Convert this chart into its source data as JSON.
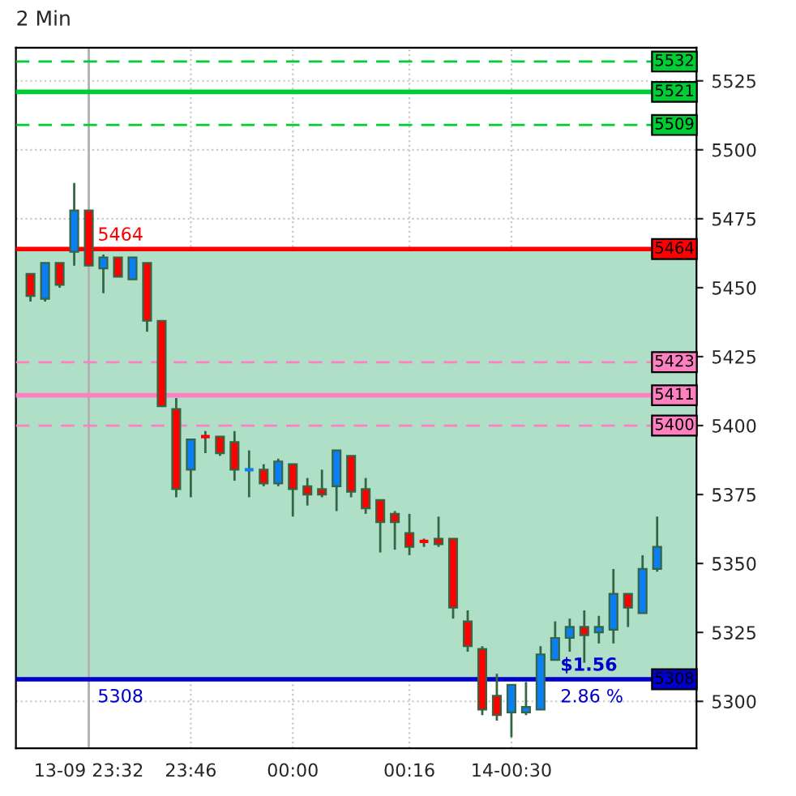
{
  "chart_data": {
    "type": "candlestick",
    "title": "2 Min",
    "categories": [
      null,
      null,
      null,
      null,
      "13-09 23:32",
      null,
      null,
      null,
      null,
      null,
      null,
      "23:46",
      null,
      null,
      null,
      null,
      null,
      null,
      "00:00",
      null,
      null,
      null,
      null,
      null,
      null,
      null,
      "00:16",
      null,
      null,
      null,
      null,
      null,
      null,
      "14-00:30",
      null,
      null,
      null,
      null,
      null,
      null,
      null,
      null,
      null,
      null
    ],
    "ohlc": [
      [
        5455,
        5455,
        5445,
        5447
      ],
      [
        5446,
        5459,
        5445,
        5459
      ],
      [
        5459,
        5459,
        5450,
        5451
      ],
      [
        5463,
        5488,
        5458,
        5478
      ],
      [
        5478,
        5478,
        5458,
        5458
      ],
      [
        5457,
        5462,
        5448,
        5461
      ],
      [
        5461,
        5461,
        5454,
        5454
      ],
      [
        5453,
        5461,
        5453,
        5461
      ],
      [
        5459,
        5459,
        5434,
        5438
      ],
      [
        5438,
        5438,
        5407,
        5407
      ],
      [
        5406,
        5410,
        5374,
        5377
      ],
      [
        5384,
        5395,
        5374,
        5395
      ],
      [
        5396,
        5398,
        5390,
        5396
      ],
      [
        5396,
        5396,
        5389,
        5390
      ],
      [
        5394,
        5398,
        5380,
        5384
      ],
      [
        5384,
        5391,
        5374,
        5384
      ],
      [
        5384,
        5386,
        5378,
        5379
      ],
      [
        5379,
        5388,
        5378,
        5387
      ],
      [
        5386,
        5386,
        5367,
        5377
      ],
      [
        5378,
        5381,
        5371,
        5375
      ],
      [
        5377,
        5384,
        5374,
        5375
      ],
      [
        5378,
        5391,
        5369,
        5391
      ],
      [
        5389,
        5389,
        5374,
        5376
      ],
      [
        5377,
        5381,
        5368,
        5370
      ],
      [
        5373,
        5373,
        5354,
        5365
      ],
      [
        5368,
        5369,
        5355,
        5365
      ],
      [
        5361,
        5368,
        5353,
        5356
      ],
      [
        5358,
        5359,
        5356,
        5358
      ],
      [
        5359,
        5367,
        5356,
        5357
      ],
      [
        5359,
        5359,
        5330,
        5334
      ],
      [
        5329,
        5333,
        5318,
        5320
      ],
      [
        5319,
        5320,
        5295,
        5297
      ],
      [
        5302,
        5310,
        5293,
        5295
      ],
      [
        5296,
        5306,
        5287,
        5306
      ],
      [
        5296,
        5307,
        5295,
        5298
      ],
      [
        5297,
        5320,
        5297,
        5317
      ],
      [
        5315,
        5329,
        5315,
        5323
      ],
      [
        5323,
        5330,
        5318,
        5327
      ],
      [
        5327,
        5333,
        5314,
        5324
      ],
      [
        5325,
        5331,
        5321,
        5327
      ],
      [
        5326,
        5348,
        5321,
        5339
      ],
      [
        5339,
        5339,
        5327,
        5334
      ],
      [
        5332,
        5353,
        5332,
        5348
      ],
      [
        5348,
        5367,
        5347,
        5356
      ]
    ],
    "colors": [
      "#ff0000",
      "#0a7ff5",
      "#ff0000",
      "#0a7ff5",
      "#ff0000",
      "#0a7ff5",
      "#ff0000",
      "#0a7ff5",
      "#ff0000",
      "#ff0000",
      "#ff0000",
      "#0a7ff5",
      "#ff0000",
      "#ff0000",
      "#ff0000",
      "#0a7ff5",
      "#ff0000",
      "#0a7ff5",
      "#ff0000",
      "#ff0000",
      "#ff0000",
      "#0a7ff5",
      "#ff0000",
      "#ff0000",
      "#ff0000",
      "#ff0000",
      "#ff0000",
      "#ff0000",
      "#ff0000",
      "#ff0000",
      "#ff0000",
      "#ff0000",
      "#ff0000",
      "#0a7ff5",
      "#0a7ff5",
      "#0a7ff5",
      "#0a7ff5",
      "#0a7ff5",
      "#ff0000",
      "#0a7ff5",
      "#0a7ff5",
      "#ff0000",
      "#0a7ff5",
      "#0a7ff5"
    ],
    "ylim": [
      5283,
      5537
    ],
    "yticks": [
      5300,
      5325,
      5350,
      5375,
      5400,
      5425,
      5450,
      5475,
      5500,
      5525
    ],
    "grid": true,
    "ref_lines": [
      {
        "axis": "y",
        "value": 5532,
        "label": "5532",
        "color": "#00cc33",
        "line_style": "dashed"
      },
      {
        "axis": "y",
        "value": 5521,
        "label": "5521",
        "color": "#00cc33",
        "line_style": "solid"
      },
      {
        "axis": "y",
        "value": 5509,
        "label": "5509",
        "color": "#00cc33",
        "line_style": "dashed"
      },
      {
        "axis": "y",
        "value": 5464,
        "label": "5464",
        "color": "#ff0000",
        "line_style": "solid"
      },
      {
        "axis": "y",
        "value": 5423,
        "label": "5423",
        "color": "#ff80c0",
        "line_style": "dashed"
      },
      {
        "axis": "y",
        "value": 5411,
        "label": "5411",
        "color": "#ff80c0",
        "line_style": "solid"
      },
      {
        "axis": "y",
        "value": 5400,
        "label": "5400",
        "color": "#ff80c0",
        "line_style": "dashed"
      },
      {
        "axis": "y",
        "value": 5308,
        "label": "5308",
        "color": "#0000cc",
        "line_style": "solid"
      },
      {
        "axis": "x",
        "value": "13-09 23:32",
        "color": "#b0b0b0",
        "line_style": "solid"
      }
    ],
    "bands": [
      {
        "axis": "y",
        "from": 5308,
        "to": 5464,
        "color": "#b0dfc8"
      }
    ],
    "annotations": [
      {
        "text": "5464",
        "y": 5464
      },
      {
        "text": "5308",
        "y": 5308
      },
      {
        "text": "$1.56",
        "y": 5308
      },
      {
        "text": "2.86 %",
        "y": 5308
      }
    ]
  }
}
